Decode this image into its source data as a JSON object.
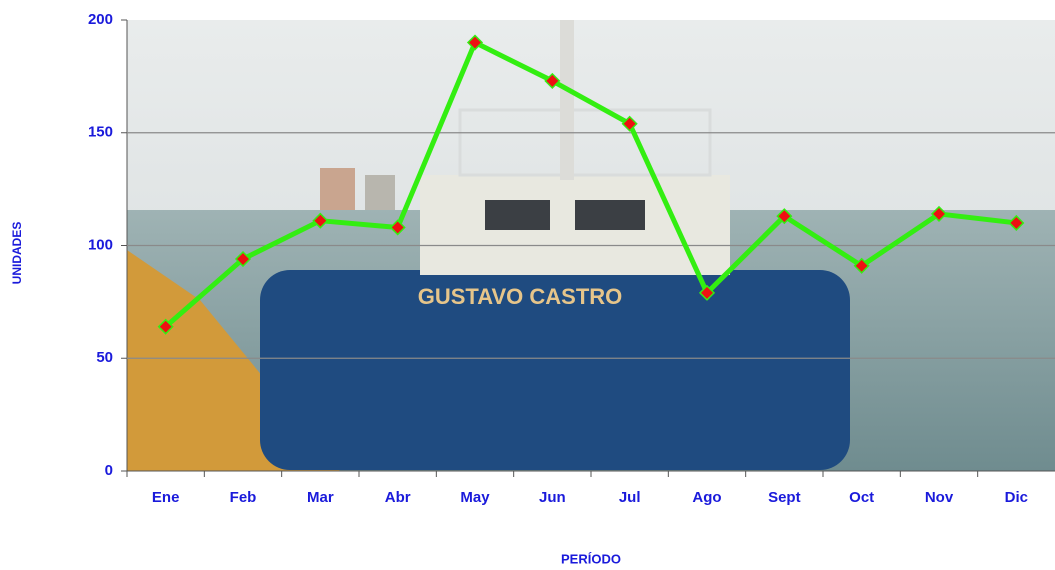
{
  "chart_data": {
    "type": "line",
    "x_label": "PERÍODO",
    "y_label": "UNIDADES",
    "categories": [
      "Ene",
      "Feb",
      "Mar",
      "Abr",
      "May",
      "Jun",
      "Jul",
      "Ago",
      "Sept",
      "Oct",
      "Nov",
      "Dic"
    ],
    "series": [
      {
        "color": "#33ee11",
        "marker_color": "#ee1111",
        "values": [
          64,
          94,
          111,
          108,
          190,
          173,
          154,
          79,
          113,
          91,
          114,
          110
        ]
      }
    ],
    "ylim": [
      0,
      200
    ],
    "yticks": [
      0,
      50,
      100,
      150,
      200
    ],
    "grid": true
  }
}
